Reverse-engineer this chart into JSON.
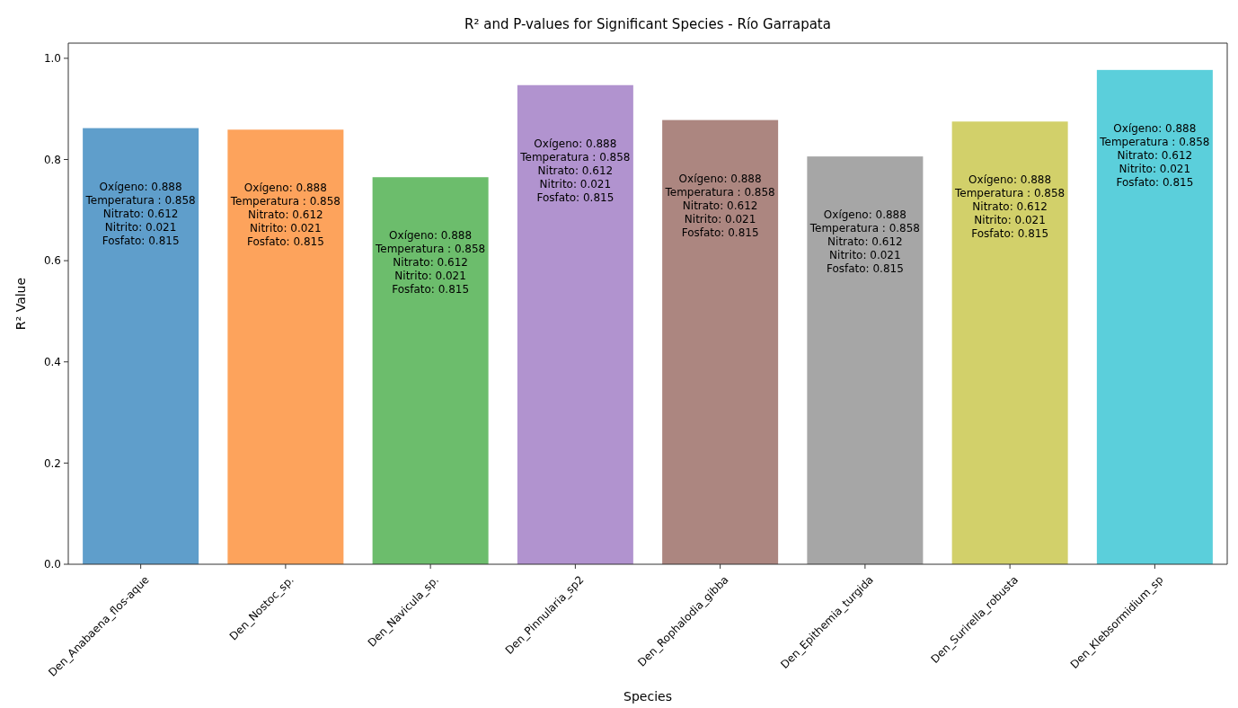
{
  "chart_data": {
    "type": "bar",
    "title": "R² and P-values for Significant Species - Río Garrapata",
    "xlabel": "Species",
    "ylabel": "R² Value",
    "categories": [
      "Den_Anabaena_flos-aque",
      "Den_Nostoc_sp.",
      "Den_Navicula_sp.",
      "Den_Pinnularia_sp2",
      "Den_Rophalodia_gibba",
      "Den_Epithemia_turgida",
      "Den_Surirella_robusta",
      "Den_Klebsormidium_sp"
    ],
    "values": [
      0.862,
      0.859,
      0.765,
      0.947,
      0.878,
      0.806,
      0.875,
      0.977
    ],
    "colors": [
      "#5f9ecb",
      "#fda35c",
      "#6cbd6c",
      "#b193cf",
      "#ac8680",
      "#a6a6a6",
      "#d2d06a",
      "#5bcfdb"
    ],
    "ylim": [
      0,
      1.03
    ],
    "yticks": [
      {
        "value": 0,
        "label": "0.0"
      },
      {
        "value": 0.2,
        "label": "0.2"
      },
      {
        "value": 0.4,
        "label": "0.4"
      },
      {
        "value": 0.6,
        "label": "0.6"
      },
      {
        "value": 0.8,
        "label": "0.8"
      },
      {
        "value": 1,
        "label": "1.0"
      }
    ],
    "annotations": [
      "Oxígeno: 0.888\nTemperatura : 0.858\nNitrato: 0.612\nNitrito: 0.021\nFosfato: 0.815",
      "Oxígeno: 0.888\nTemperatura : 0.858\nNitrato: 0.612\nNitrito: 0.021\nFosfato: 0.815",
      "Oxígeno: 0.888\nTemperatura : 0.858\nNitrato: 0.612\nNitrito: 0.021\nFosfato: 0.815",
      "Oxígeno: 0.888\nTemperatura : 0.858\nNitrato: 0.612\nNitrito: 0.021\nFosfato: 0.815",
      "Oxígeno: 0.888\nTemperatura : 0.858\nNitrato: 0.612\nNitrito: 0.021\nFosfato: 0.815",
      "Oxígeno: 0.888\nTemperatura : 0.858\nNitrato: 0.612\nNitrito: 0.021\nFosfato: 0.815",
      "Oxígeno: 0.888\nTemperatura : 0.858\nNitrato: 0.612\nNitrito: 0.021\nFosfato: 0.815",
      "Oxígeno: 0.888\nTemperatura : 0.858\nNitrato: 0.612\nNitrito: 0.021\nFosfato: 0.815"
    ]
  }
}
